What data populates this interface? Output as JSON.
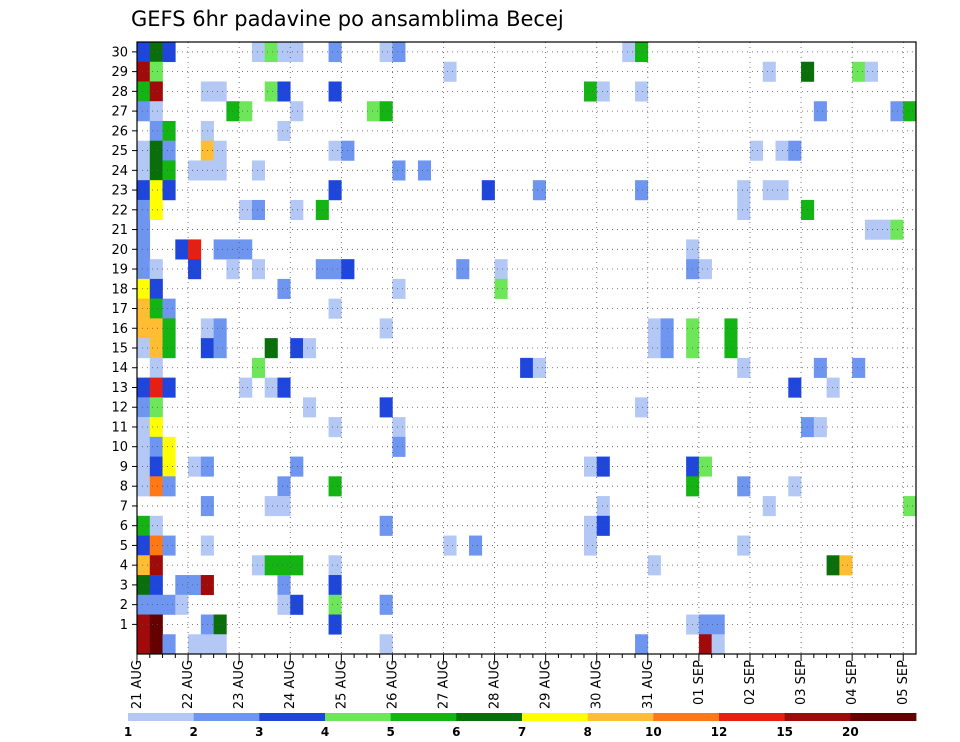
{
  "chart_data": {
    "type": "heatmap",
    "title": "GEFS 6hr padavine po ansamblima Becej",
    "x_labels": [
      "21 AUG",
      "22 AUG",
      "23 AUG",
      "24 AUG",
      "25 AUG",
      "26 AUG",
      "27 AUG",
      "28 AUG",
      "29 AUG",
      "30 AUG",
      "31 AUG",
      "01 SEP",
      "02 SEP",
      "03 SEP",
      "04 SEP",
      "05 SEP"
    ],
    "y_range": [
      1,
      30
    ],
    "grid": true,
    "colorbar": {
      "colors": [
        "#b4c8f5",
        "#6e96f0",
        "#1e46dc",
        "#6ee65a",
        "#14b414",
        "#0a6e0a",
        "#ffff00",
        "#ffbe32",
        "#ff7814",
        "#e61e14",
        "#a00a0a",
        "#640000"
      ],
      "labels": [
        "1",
        "2",
        "3",
        "4",
        "5",
        "6",
        "7",
        "8",
        "10",
        "12",
        "15",
        "20"
      ]
    },
    "cells": [
      [
        0,
        30,
        3
      ],
      [
        1,
        30,
        6
      ],
      [
        2,
        30,
        3
      ],
      [
        9,
        30,
        1
      ],
      [
        10,
        30,
        4
      ],
      [
        11,
        30,
        1
      ],
      [
        12,
        30,
        1
      ],
      [
        15,
        30,
        2
      ],
      [
        19,
        30,
        1
      ],
      [
        20,
        30,
        2
      ],
      [
        38,
        30,
        1
      ],
      [
        39,
        30,
        5
      ],
      [
        0,
        29,
        11
      ],
      [
        1,
        29,
        4
      ],
      [
        24,
        29,
        1
      ],
      [
        49,
        29,
        1
      ],
      [
        52,
        29,
        6
      ],
      [
        56,
        29,
        4
      ],
      [
        57,
        29,
        1
      ],
      [
        0,
        28,
        5
      ],
      [
        1,
        28,
        11
      ],
      [
        5,
        28,
        1
      ],
      [
        6,
        28,
        1
      ],
      [
        10,
        28,
        4
      ],
      [
        11,
        28,
        3
      ],
      [
        15,
        28,
        3
      ],
      [
        35,
        28,
        5
      ],
      [
        36,
        28,
        1
      ],
      [
        39,
        28,
        1
      ],
      [
        0,
        27,
        2
      ],
      [
        1,
        27,
        1
      ],
      [
        7,
        27,
        5
      ],
      [
        8,
        27,
        4
      ],
      [
        12,
        27,
        1
      ],
      [
        18,
        27,
        4
      ],
      [
        19,
        27,
        5
      ],
      [
        53,
        27,
        2
      ],
      [
        59,
        27,
        2
      ],
      [
        60,
        27,
        5
      ],
      [
        1,
        26,
        2
      ],
      [
        2,
        26,
        5
      ],
      [
        5,
        26,
        1
      ],
      [
        11,
        26,
        1
      ],
      [
        0,
        25,
        1
      ],
      [
        1,
        25,
        6
      ],
      [
        2,
        25,
        2
      ],
      [
        5,
        25,
        8
      ],
      [
        6,
        25,
        1
      ],
      [
        15,
        25,
        1
      ],
      [
        16,
        25,
        2
      ],
      [
        48,
        25,
        1
      ],
      [
        50,
        25,
        1
      ],
      [
        51,
        25,
        2
      ],
      [
        0,
        24,
        1
      ],
      [
        1,
        24,
        6
      ],
      [
        2,
        24,
        5
      ],
      [
        4,
        24,
        1
      ],
      [
        5,
        24,
        1
      ],
      [
        6,
        24,
        1
      ],
      [
        9,
        24,
        1
      ],
      [
        20,
        24,
        2
      ],
      [
        22,
        24,
        2
      ],
      [
        0,
        23,
        3
      ],
      [
        1,
        23,
        7
      ],
      [
        2,
        23,
        3
      ],
      [
        15,
        23,
        3
      ],
      [
        27,
        23,
        3
      ],
      [
        31,
        23,
        2
      ],
      [
        39,
        23,
        2
      ],
      [
        47,
        23,
        1
      ],
      [
        49,
        23,
        1
      ],
      [
        50,
        23,
        1
      ],
      [
        0,
        22,
        2
      ],
      [
        1,
        22,
        7
      ],
      [
        8,
        22,
        1
      ],
      [
        9,
        22,
        2
      ],
      [
        12,
        22,
        1
      ],
      [
        14,
        22,
        5
      ],
      [
        47,
        22,
        1
      ],
      [
        52,
        22,
        5
      ],
      [
        0,
        21,
        2
      ],
      [
        57,
        21,
        1
      ],
      [
        58,
        21,
        1
      ],
      [
        59,
        21,
        4
      ],
      [
        0,
        20,
        2
      ],
      [
        3,
        20,
        3
      ],
      [
        4,
        20,
        10
      ],
      [
        6,
        20,
        2
      ],
      [
        7,
        20,
        2
      ],
      [
        8,
        20,
        2
      ],
      [
        43,
        20,
        1
      ],
      [
        0,
        19,
        2
      ],
      [
        1,
        19,
        1
      ],
      [
        4,
        19,
        3
      ],
      [
        7,
        19,
        1
      ],
      [
        9,
        19,
        1
      ],
      [
        14,
        19,
        2
      ],
      [
        15,
        19,
        2
      ],
      [
        16,
        19,
        3
      ],
      [
        25,
        19,
        2
      ],
      [
        28,
        19,
        1
      ],
      [
        43,
        19,
        2
      ],
      [
        44,
        19,
        1
      ],
      [
        0,
        18,
        7
      ],
      [
        1,
        18,
        3
      ],
      [
        11,
        18,
        2
      ],
      [
        20,
        18,
        1
      ],
      [
        28,
        18,
        4
      ],
      [
        0,
        17,
        8
      ],
      [
        1,
        17,
        5
      ],
      [
        2,
        17,
        2
      ],
      [
        15,
        17,
        1
      ],
      [
        0,
        16,
        8
      ],
      [
        1,
        16,
        8
      ],
      [
        2,
        16,
        5
      ],
      [
        5,
        16,
        1
      ],
      [
        6,
        16,
        2
      ],
      [
        19,
        16,
        1
      ],
      [
        40,
        16,
        1
      ],
      [
        41,
        16,
        2
      ],
      [
        43,
        16,
        4
      ],
      [
        46,
        16,
        5
      ],
      [
        0,
        15,
        1
      ],
      [
        1,
        15,
        8
      ],
      [
        2,
        15,
        5
      ],
      [
        5,
        15,
        3
      ],
      [
        6,
        15,
        2
      ],
      [
        10,
        15,
        6
      ],
      [
        12,
        15,
        3
      ],
      [
        13,
        15,
        1
      ],
      [
        40,
        15,
        1
      ],
      [
        41,
        15,
        2
      ],
      [
        43,
        15,
        4
      ],
      [
        46,
        15,
        5
      ],
      [
        1,
        14,
        1
      ],
      [
        9,
        14,
        4
      ],
      [
        30,
        14,
        3
      ],
      [
        31,
        14,
        1
      ],
      [
        47,
        14,
        1
      ],
      [
        53,
        14,
        2
      ],
      [
        56,
        14,
        2
      ],
      [
        0,
        13,
        3
      ],
      [
        1,
        13,
        10
      ],
      [
        2,
        13,
        3
      ],
      [
        8,
        13,
        1
      ],
      [
        10,
        13,
        1
      ],
      [
        11,
        13,
        3
      ],
      [
        51,
        13,
        3
      ],
      [
        54,
        13,
        1
      ],
      [
        0,
        12,
        2
      ],
      [
        1,
        12,
        4
      ],
      [
        13,
        12,
        1
      ],
      [
        19,
        12,
        3
      ],
      [
        39,
        12,
        1
      ],
      [
        0,
        11,
        1
      ],
      [
        1,
        11,
        7
      ],
      [
        15,
        11,
        1
      ],
      [
        20,
        11,
        1
      ],
      [
        52,
        11,
        2
      ],
      [
        53,
        11,
        1
      ],
      [
        0,
        10,
        1
      ],
      [
        1,
        10,
        2
      ],
      [
        2,
        10,
        7
      ],
      [
        20,
        10,
        2
      ],
      [
        0,
        9,
        1
      ],
      [
        1,
        9,
        3
      ],
      [
        2,
        9,
        7
      ],
      [
        4,
        9,
        1
      ],
      [
        5,
        9,
        2
      ],
      [
        12,
        9,
        2
      ],
      [
        35,
        9,
        1
      ],
      [
        36,
        9,
        3
      ],
      [
        43,
        9,
        3
      ],
      [
        44,
        9,
        4
      ],
      [
        0,
        8,
        1
      ],
      [
        1,
        8,
        9
      ],
      [
        2,
        8,
        2
      ],
      [
        11,
        8,
        2
      ],
      [
        15,
        8,
        5
      ],
      [
        43,
        8,
        5
      ],
      [
        47,
        8,
        2
      ],
      [
        51,
        8,
        1
      ],
      [
        5,
        7,
        2
      ],
      [
        10,
        7,
        1
      ],
      [
        11,
        7,
        1
      ],
      [
        36,
        7,
        1
      ],
      [
        49,
        7,
        1
      ],
      [
        60,
        7,
        4
      ],
      [
        0,
        6,
        5
      ],
      [
        1,
        6,
        1
      ],
      [
        19,
        6,
        2
      ],
      [
        35,
        6,
        1
      ],
      [
        36,
        6,
        3
      ],
      [
        0,
        5,
        3
      ],
      [
        1,
        5,
        9
      ],
      [
        2,
        5,
        2
      ],
      [
        5,
        5,
        1
      ],
      [
        24,
        5,
        1
      ],
      [
        26,
        5,
        2
      ],
      [
        35,
        5,
        1
      ],
      [
        47,
        5,
        1
      ],
      [
        0,
        4,
        8
      ],
      [
        1,
        4,
        11
      ],
      [
        9,
        4,
        1
      ],
      [
        10,
        4,
        5
      ],
      [
        11,
        4,
        5
      ],
      [
        12,
        4,
        5
      ],
      [
        15,
        4,
        1
      ],
      [
        40,
        4,
        1
      ],
      [
        54,
        4,
        6
      ],
      [
        55,
        4,
        8
      ],
      [
        0,
        3,
        6
      ],
      [
        1,
        3,
        3
      ],
      [
        3,
        3,
        2
      ],
      [
        4,
        3,
        2
      ],
      [
        5,
        3,
        11
      ],
      [
        11,
        3,
        2
      ],
      [
        15,
        3,
        3
      ],
      [
        0,
        2,
        2
      ],
      [
        1,
        2,
        2
      ],
      [
        2,
        2,
        2
      ],
      [
        3,
        2,
        1
      ],
      [
        11,
        2,
        1
      ],
      [
        12,
        2,
        3
      ],
      [
        15,
        2,
        4
      ],
      [
        19,
        2,
        2
      ],
      [
        0,
        1,
        11
      ],
      [
        1,
        1,
        12
      ],
      [
        5,
        1,
        2
      ],
      [
        6,
        1,
        6
      ],
      [
        15,
        1,
        3
      ],
      [
        43,
        1,
        1
      ],
      [
        44,
        1,
        2
      ],
      [
        45,
        1,
        2
      ],
      [
        0,
        0,
        11
      ],
      [
        1,
        0,
        12
      ],
      [
        2,
        0,
        2
      ],
      [
        4,
        0,
        1
      ],
      [
        5,
        0,
        1
      ],
      [
        6,
        0,
        1
      ],
      [
        19,
        0,
        1
      ],
      [
        39,
        0,
        2
      ],
      [
        44,
        0,
        11
      ],
      [
        45,
        0,
        1
      ]
    ]
  }
}
